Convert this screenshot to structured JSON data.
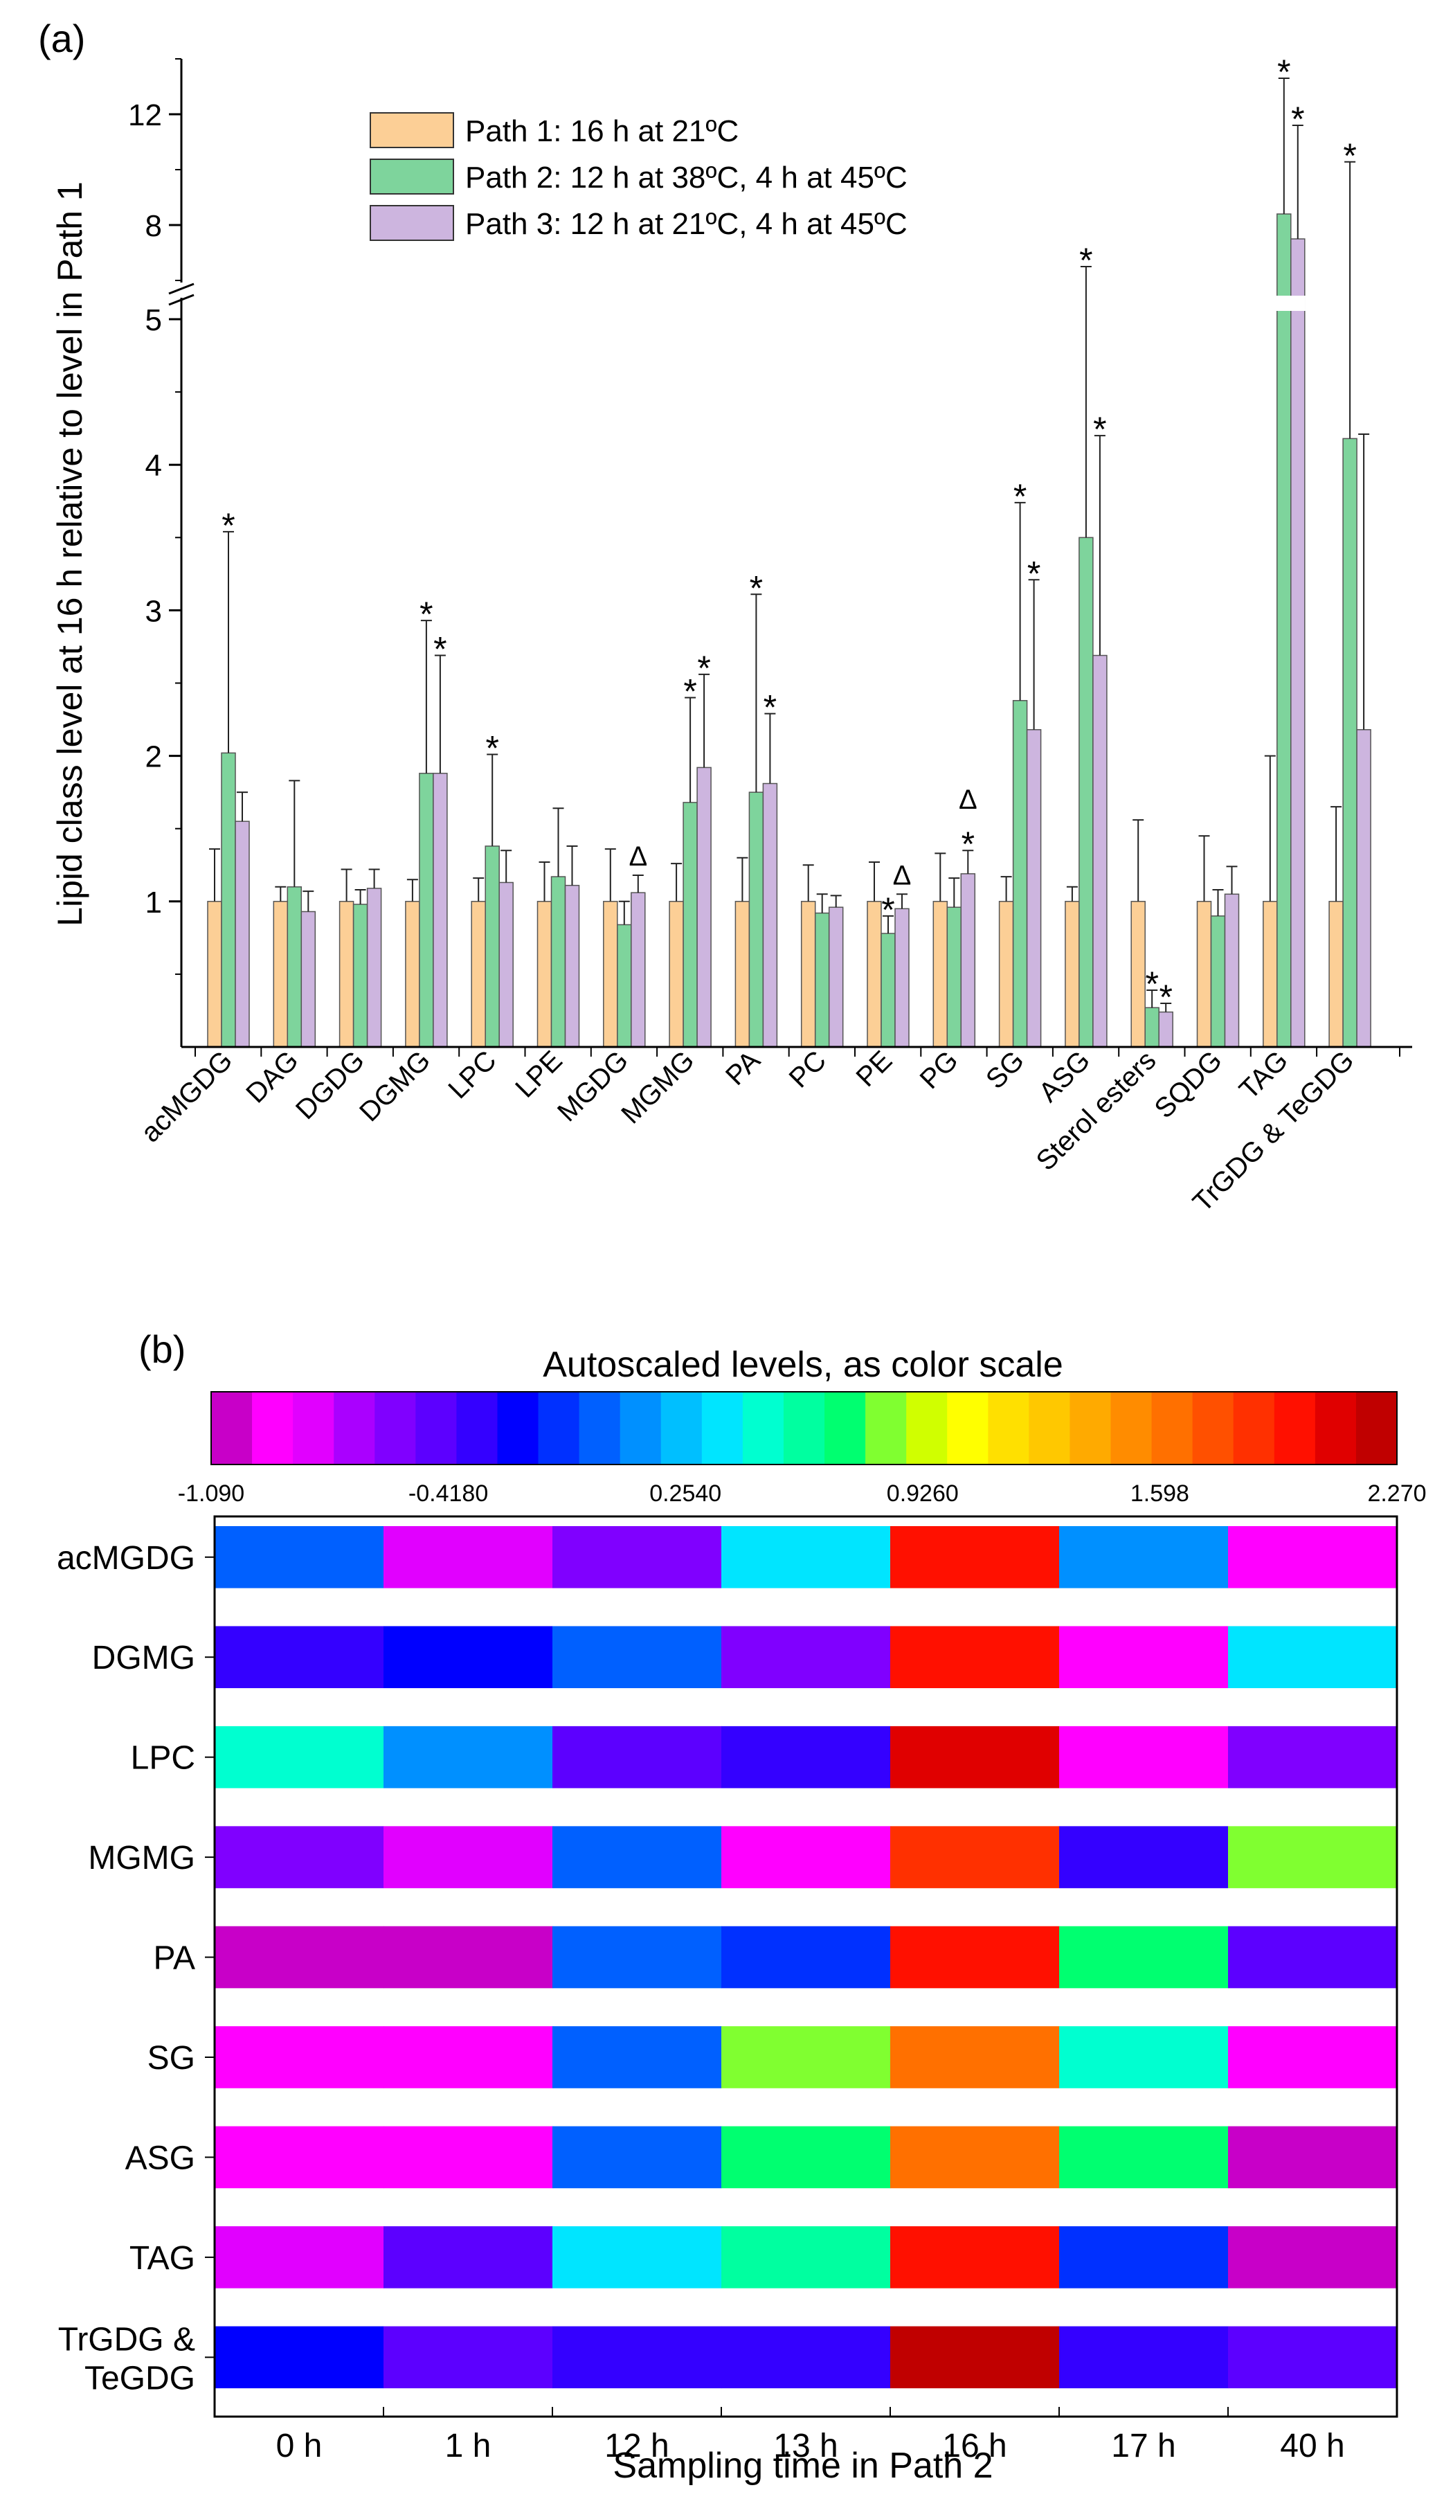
{
  "chart_data": [
    {
      "type": "bar",
      "panel_label": "(a)",
      "ylabel": "Lipid class level at 16 h relative to level in Path 1",
      "xlabel": "",
      "y_ticks": [
        "1",
        "2",
        "3",
        "4",
        "5",
        "8",
        "12"
      ],
      "ylim": [
        0,
        14
      ],
      "y_axis_break": {
        "lower": [
          0,
          5
        ],
        "upper": [
          5,
          14
        ],
        "upper_tick_values": [
          8,
          12
        ]
      },
      "categories": [
        "acMGDG",
        "DAG",
        "DGDG",
        "DGMG",
        "LPC",
        "LPE",
        "MGDG",
        "MGMG",
        "PA",
        "PC",
        "PE",
        "PG",
        "SG",
        "ASG",
        "Sterol esters",
        "SQDG",
        "TAG",
        "TrGDG & TeGDG"
      ],
      "series": [
        {
          "name": "Path 1: 16 h at 21ºC",
          "color": "#FCCF96",
          "values": [
            1,
            1,
            1,
            1,
            1,
            1,
            1,
            1,
            1,
            1,
            1,
            1,
            1,
            1,
            1,
            1,
            1,
            1
          ],
          "errors": [
            0.36,
            0.1,
            0.22,
            0.15,
            0.16,
            0.27,
            0.36,
            0.26,
            0.3,
            0.25,
            0.27,
            0.33,
            0.17,
            0.1,
            0.56,
            0.45,
            1.0,
            0.65
          ]
        },
        {
          "name": "Path 2: 12 h at 38ºC, 4 h at 45ºC",
          "color": "#7ED49C",
          "values": [
            2.02,
            1.1,
            0.98,
            1.88,
            1.38,
            1.17,
            0.84,
            1.68,
            1.75,
            0.92,
            0.78,
            0.96,
            2.38,
            3.5,
            0.27,
            0.9,
            8.4,
            4.18
          ],
          "errors": [
            1.52,
            0.73,
            0.1,
            1.05,
            0.63,
            0.47,
            0.16,
            0.72,
            1.36,
            0.13,
            0.12,
            0.2,
            1.36,
            3.0,
            0.12,
            0.18,
            4.9,
            6.1
          ]
        },
        {
          "name": "Path 3: 12 h at 21ºC, 4 h at 45ºC",
          "color": "#CDB5DF",
          "values": [
            1.55,
            0.93,
            1.09,
            1.88,
            1.13,
            1.11,
            1.06,
            1.92,
            1.81,
            0.96,
            0.95,
            1.19,
            2.18,
            2.69,
            0.24,
            1.05,
            7.5,
            2.18
          ],
          "errors": [
            0.2,
            0.14,
            0.13,
            0.81,
            0.22,
            0.27,
            0.12,
            0.64,
            0.48,
            0.08,
            0.1,
            0.16,
            1.03,
            1.51,
            0.06,
            0.19,
            4.1,
            2.03
          ]
        }
      ],
      "markers": [
        {
          "category": "acMGDG",
          "series": 1,
          "label": "*"
        },
        {
          "category": "DGMG",
          "series": 1,
          "label": "*"
        },
        {
          "category": "DGMG",
          "series": 2,
          "label": "*"
        },
        {
          "category": "LPC",
          "series": 1,
          "label": "*"
        },
        {
          "category": "MGDG",
          "series": 2,
          "label": "Δ"
        },
        {
          "category": "MGMG",
          "series": 1,
          "label": "*"
        },
        {
          "category": "MGMG",
          "series": 2,
          "label": "*"
        },
        {
          "category": "PA",
          "series": 1,
          "label": "*"
        },
        {
          "category": "PA",
          "series": 2,
          "label": "*"
        },
        {
          "category": "PE",
          "series": 1,
          "label": "*"
        },
        {
          "category": "PE",
          "series": 2,
          "label": "Δ"
        },
        {
          "category": "PG",
          "series": 2,
          "label": "*"
        },
        {
          "category": "PG",
          "series": 2,
          "label": "Δ",
          "stack": 1
        },
        {
          "category": "SG",
          "series": 1,
          "label": "*"
        },
        {
          "category": "SG",
          "series": 2,
          "label": "*"
        },
        {
          "category": "ASG",
          "series": 1,
          "label": "*"
        },
        {
          "category": "ASG",
          "series": 2,
          "label": "*"
        },
        {
          "category": "Sterol esters",
          "series": 1,
          "label": "*"
        },
        {
          "category": "Sterol esters",
          "series": 2,
          "label": "*"
        },
        {
          "category": "TAG",
          "series": 1,
          "label": "*"
        },
        {
          "category": "TAG",
          "series": 2,
          "label": "*"
        },
        {
          "category": "TrGDG & TeGDG",
          "series": 1,
          "label": "*"
        }
      ]
    },
    {
      "type": "heatmap",
      "panel_label": "(b)",
      "title": "Autoscaled levels, as color scale",
      "xlabel": "Sampling time in Path 2",
      "colorbar_ticks": [
        "-1.090",
        "-0.4180",
        "0.2540",
        "0.9260",
        "1.598",
        "2.270"
      ],
      "colorbar_range": [
        -1.09,
        2.27
      ],
      "colorbar_colors": [
        "#C800C8",
        "#FF00FF",
        "#E100FF",
        "#AA00FF",
        "#8000FF",
        "#5C00FF",
        "#3400FF",
        "#0000FF",
        "#0030FF",
        "#0060FF",
        "#0090FF",
        "#00BFFF",
        "#00E5FF",
        "#00FFD0",
        "#00FFA0",
        "#00FF70",
        "#80FF30",
        "#D0FF00",
        "#FFFF00",
        "#FFE000",
        "#FFC800",
        "#FFAA00",
        "#FF8C00",
        "#FF7000",
        "#FF5000",
        "#FF3000",
        "#FF1000",
        "#E00000",
        "#C00000"
      ],
      "columns": [
        "0 h",
        "1 h",
        "12 h",
        "13 h",
        "16 h",
        "17 h",
        "40 h"
      ],
      "rows": [
        "acMGDG",
        "DGMG",
        "LPC",
        "MGMG",
        "PA",
        "SG",
        "ASG",
        "TAG",
        "TrGDG & TeGDG"
      ],
      "values": [
        [
          0.05,
          -0.82,
          -0.62,
          0.32,
          1.98,
          0.08,
          -0.95
        ],
        [
          -0.35,
          -0.17,
          0.0,
          -0.62,
          2.02,
          -0.95,
          0.32
        ],
        [
          0.42,
          0.08,
          -0.48,
          -0.32,
          2.12,
          -0.95,
          -0.55
        ],
        [
          -0.55,
          -0.75,
          0.02,
          -0.92,
          1.86,
          -0.38,
          0.86
        ],
        [
          -0.98,
          -0.98,
          0.02,
          -0.12,
          1.93,
          0.68,
          -0.48
        ],
        [
          -0.92,
          -0.96,
          0.0,
          0.82,
          1.68,
          0.45,
          -0.9
        ],
        [
          -0.9,
          -0.95,
          0.05,
          0.74,
          1.66,
          0.76,
          -0.98
        ],
        [
          -0.75,
          -0.5,
          0.35,
          0.55,
          1.95,
          -0.15,
          -0.98
        ],
        [
          -0.2,
          -0.42,
          -0.28,
          -0.28,
          2.27,
          -0.32,
          -0.48
        ]
      ]
    }
  ]
}
